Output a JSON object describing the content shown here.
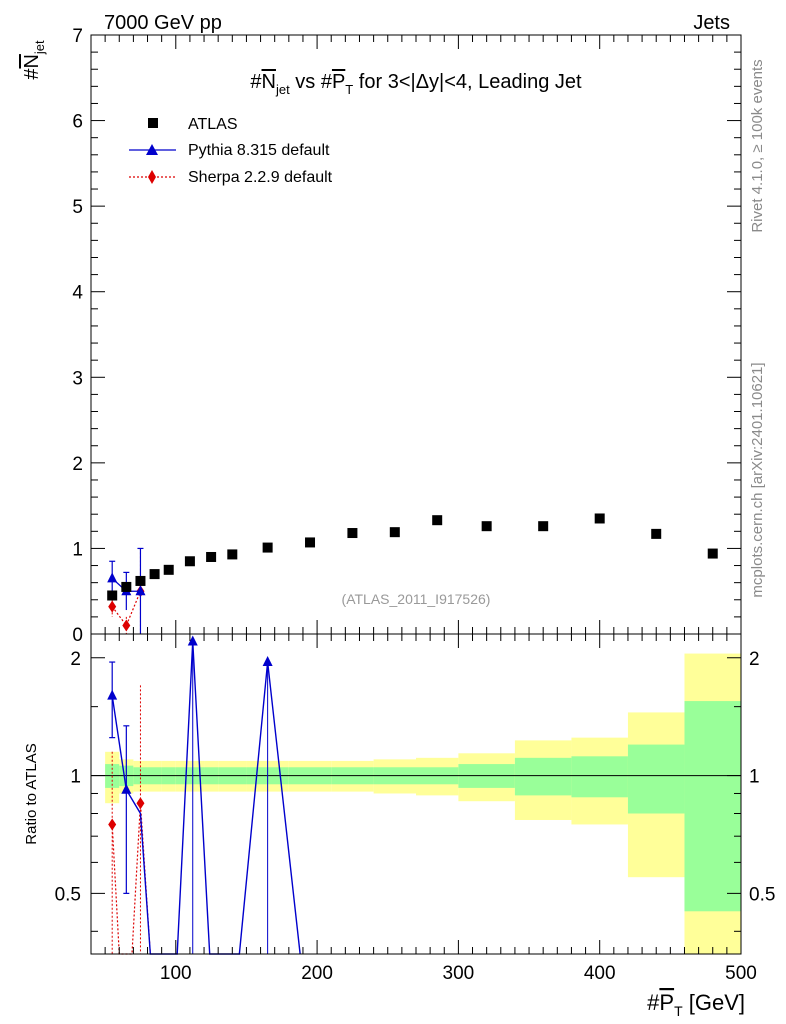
{
  "header": {
    "energy_label": "7000 GeV pp",
    "process_label": "Jets"
  },
  "side_labels": {
    "rivet": "Rivet 4.1.0, ≥ 100k events",
    "mcplots": "mcplots.cern.ch [arXiv:2401.10621]"
  },
  "chart_data": {
    "type": "scatter",
    "title": "#N̅jet vs #P̅T for 3<|Δy|<4, Leading Jet",
    "title_parts": {
      "pre": "#",
      "n": "N",
      "n_sub": "jet",
      "mid": " vs #",
      "p": "P",
      "p_sub": "T",
      "post": " for 3<|Δy|<4, Leading Jet"
    },
    "ylabel_main": {
      "pre": "#",
      "n": "N",
      "n_sub": "jet"
    },
    "ylabel_ratio": "Ratio to ATLAS",
    "xlabel": {
      "pre": "#",
      "p": "P",
      "p_sub": "T",
      "post": " [GeV]"
    },
    "analysis_tag": "(ATLAS_2011_I917526)",
    "xlim": [
      40,
      500
    ],
    "ylim_main": [
      0,
      7
    ],
    "ylim_ratio": [
      0.35,
      2.3
    ],
    "x_ticks": [
      100,
      200,
      300,
      400,
      500
    ],
    "x_tick_labels": [
      "100",
      "200",
      "300",
      "400",
      "500"
    ],
    "y_ticks_main": [
      0,
      1,
      2,
      3,
      4,
      5,
      6,
      7
    ],
    "y_tick_labels_main": [
      "0",
      "1",
      "2",
      "3",
      "4",
      "5",
      "6",
      "7"
    ],
    "y_ticks_ratio": [
      0.5,
      1,
      2
    ],
    "y_tick_labels_ratio": [
      "0.5",
      "1",
      "2"
    ],
    "legend": [
      {
        "label": "ATLAS",
        "marker": "square",
        "color": "#000000"
      },
      {
        "label": "Pythia 8.315 default",
        "marker": "triangle",
        "color": "#0000cc"
      },
      {
        "label": "Sherpa 2.2.9 default",
        "marker": "diamond",
        "color": "#dd0000"
      }
    ],
    "atlas": {
      "x": [
        55,
        65,
        75,
        85,
        95,
        110,
        125,
        140,
        165,
        195,
        225,
        255,
        285,
        320,
        360,
        400,
        440,
        480
      ],
      "y": [
        0.45,
        0.55,
        0.62,
        0.7,
        0.75,
        0.85,
        0.9,
        0.93,
        1.01,
        1.07,
        1.18,
        1.19,
        1.33,
        1.26,
        1.26,
        1.35,
        1.17,
        0.94
      ],
      "bins": [
        [
          50,
          60
        ],
        [
          60,
          70
        ],
        [
          70,
          80
        ],
        [
          80,
          90
        ],
        [
          90,
          100
        ],
        [
          100,
          120
        ],
        [
          120,
          130
        ],
        [
          130,
          150
        ],
        [
          150,
          180
        ],
        [
          180,
          210
        ],
        [
          210,
          240
        ],
        [
          240,
          270
        ],
        [
          270,
          300
        ],
        [
          300,
          340
        ],
        [
          340,
          380
        ],
        [
          380,
          420
        ],
        [
          420,
          460
        ],
        [
          460,
          500
        ]
      ],
      "band_stat": [
        0.07,
        0.06,
        0.05,
        0.05,
        0.05,
        0.05,
        0.05,
        0.05,
        0.05,
        0.05,
        0.05,
        0.05,
        0.05,
        0.07,
        0.11,
        0.12,
        0.2,
        0.55
      ],
      "band_total": [
        0.15,
        0.1,
        0.09,
        0.09,
        0.09,
        0.09,
        0.09,
        0.09,
        0.09,
        0.09,
        0.09,
        0.1,
        0.11,
        0.14,
        0.23,
        0.25,
        0.45,
        1.05
      ]
    },
    "pythia": {
      "main": {
        "x": [
          55,
          65,
          75
        ],
        "y": [
          0.65,
          0.5,
          0.5
        ],
        "err": [
          0.2,
          0.22,
          0.5
        ]
      },
      "ratio": {
        "x": [
          55,
          65,
          75,
          82,
          101,
          112,
          124,
          145,
          165,
          188
        ],
        "y": [
          1.6,
          0.92,
          0.8,
          0.0,
          0.0,
          2.2,
          0.0,
          0.0,
          1.95,
          0.0
        ],
        "err": [
          0.35,
          0.42,
          0.5,
          0,
          0,
          0.0,
          0,
          0,
          0.0,
          0
        ],
        "markers": [
          true,
          true,
          false,
          false,
          false,
          true,
          false,
          false,
          true,
          false
        ]
      }
    },
    "sherpa": {
      "main": {
        "x": [
          55,
          65,
          75
        ],
        "y": [
          0.32,
          0.1,
          0.5
        ],
        "err": [
          0.12,
          0.1,
          0.5
        ]
      },
      "ratio": {
        "x": [
          55,
          60,
          69,
          75,
          82
        ],
        "y": [
          0.75,
          0.0,
          0.0,
          0.85,
          0.0
        ],
        "err": [
          0.4,
          0,
          0,
          0.85,
          0
        ],
        "markers": [
          true,
          false,
          false,
          true,
          false
        ]
      }
    }
  }
}
